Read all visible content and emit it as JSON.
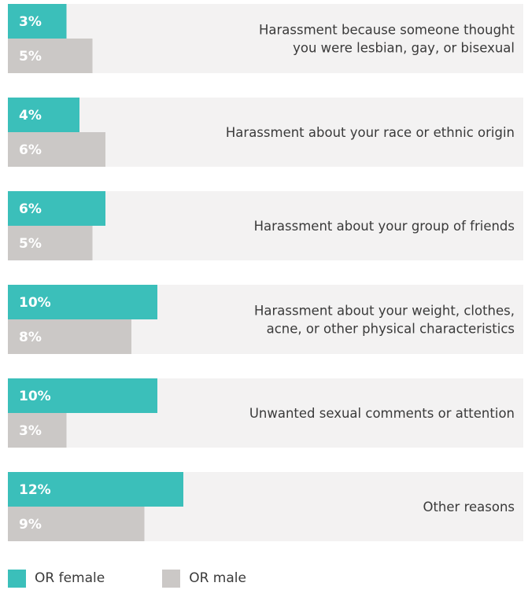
{
  "chart_data": {
    "type": "bar",
    "orientation": "horizontal",
    "categories": [
      [
        "Harassment because someone thought",
        "you were lesbian, gay, or bisexual"
      ],
      [
        "Harassment about your race or ethnic origin"
      ],
      [
        "Harassment about your group of friends"
      ],
      [
        "Harassment about your weight, clothes,",
        "acne, or other physical characteristics"
      ],
      [
        "Unwanted sexual comments or attention"
      ],
      [
        "Other reasons"
      ]
    ],
    "series": [
      {
        "name": "OR female",
        "color": "#3bbfba",
        "values": [
          3,
          4,
          6,
          10,
          10,
          12
        ],
        "labels": [
          "3%",
          "4%",
          "6%",
          "10%",
          "10%",
          "12%"
        ]
      },
      {
        "name": "OR male",
        "color": "#cbc8c6",
        "values": [
          5,
          6,
          5,
          8,
          3,
          9
        ],
        "labels": [
          "5%",
          "6%",
          "5%",
          "8%",
          "3%",
          "9%"
        ]
      }
    ],
    "xlim": [
      0,
      36
    ],
    "row_background": "#f3f2f2",
    "legend_position": "bottom-left"
  }
}
